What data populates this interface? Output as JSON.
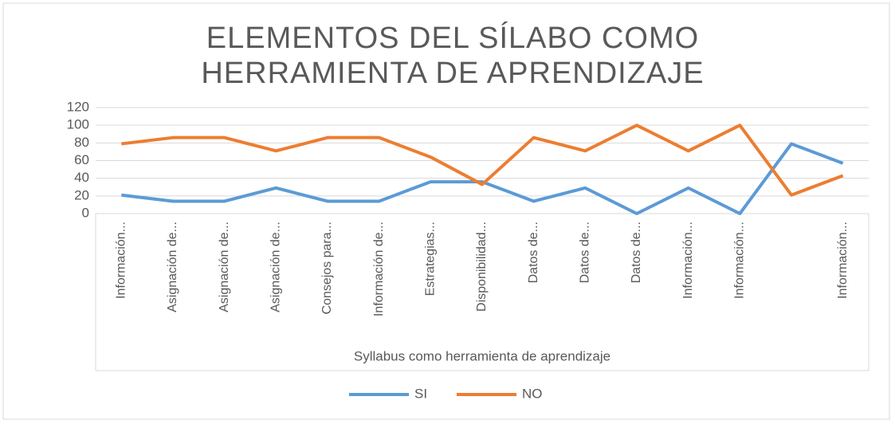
{
  "chart_data": {
    "type": "line",
    "title": "ELEMENTOS DEL SÍLABO COMO HERRAMIENTA DE APRENDIZAJE",
    "x_label": "Syllabus como herramienta de aprendizaje",
    "categories": [
      "Información...",
      "Asignación de...",
      "Asignación de...",
      "Asignación de...",
      "Consejos para...",
      "Información de...",
      "Estrategias...",
      "Disponibilidad...",
      "Datos de...",
      "Datos de...",
      "Datos de...",
      "Información...",
      "Información...",
      null,
      "Información..."
    ],
    "series": [
      {
        "name": "SI",
        "color": "#5b9bd5",
        "values": [
          21,
          14,
          14,
          29,
          14,
          14,
          36,
          36,
          14,
          29,
          0,
          29,
          0,
          79,
          57
        ]
      },
      {
        "name": "NO",
        "color": "#ed7d31",
        "values": [
          79,
          86,
          86,
          71,
          86,
          86,
          64,
          33,
          86,
          71,
          100,
          71,
          100,
          21,
          43
        ]
      }
    ],
    "ylim": [
      0,
      120
    ],
    "yticks": [
      0,
      20,
      40,
      60,
      80,
      100,
      120
    ],
    "grid": true,
    "legend": "bottom"
  }
}
